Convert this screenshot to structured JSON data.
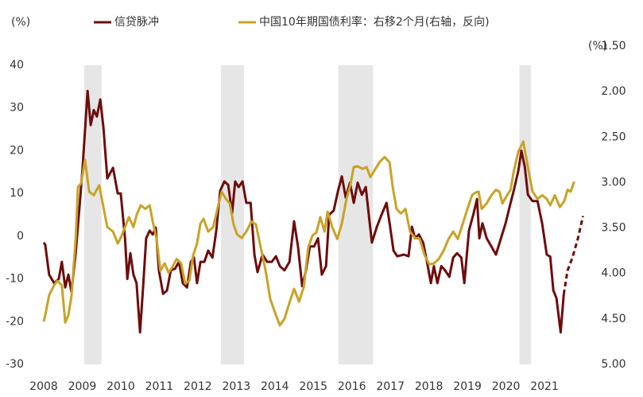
{
  "chart_data": {
    "type": "line",
    "y_label": "(%)",
    "y2_label": "(%)",
    "xlim": [
      2008,
      2022
    ],
    "xticks": [
      2008,
      2009,
      2010,
      2011,
      2012,
      2013,
      2014,
      2015,
      2016,
      2017,
      2018,
      2019,
      2020,
      2021
    ],
    "ylim": [
      -30,
      40
    ],
    "yticks": [
      40,
      30,
      20,
      10,
      0,
      -10,
      -20,
      -30
    ],
    "y2lim": [
      5.0,
      1.5
    ],
    "y2_reversed": true,
    "y2ticks": [
      {
        "value": 1.5,
        "label": "1.50"
      },
      {
        "value": 2.0,
        "label": "2.00"
      },
      {
        "value": 2.5,
        "label": "2.50"
      },
      {
        "value": 3.0,
        "label": "3.00"
      },
      {
        "value": 3.5,
        "label": "3.50"
      },
      {
        "value": 4.0,
        "label": "4.00"
      },
      {
        "value": 4.5,
        "label": "4.50"
      },
      {
        "value": 5.0,
        "label": "5.00"
      }
    ],
    "grid": false,
    "shaded_x_ranges": [
      [
        2009.05,
        2009.5
      ],
      [
        2012.6,
        2013.2
      ],
      [
        2015.65,
        2016.55
      ],
      [
        2020.35,
        2020.65
      ]
    ],
    "shade_color": "#e6e6e6",
    "series": [
      {
        "name": "信贷脉冲",
        "color": "#6e0c0c",
        "axis": "y",
        "dashed_from_x": 2021.6,
        "x": [
          2008.0,
          2008.04,
          2008.14,
          2008.27,
          2008.39,
          2008.47,
          2008.56,
          2008.64,
          2008.72,
          2008.83,
          2008.93,
          2009.01,
          2009.14,
          2009.22,
          2009.3,
          2009.38,
          2009.47,
          2009.55,
          2009.65,
          2009.8,
          2009.92,
          2010.0,
          2010.11,
          2010.17,
          2010.25,
          2010.33,
          2010.41,
          2010.5,
          2010.58,
          2010.66,
          2010.75,
          2010.83,
          2010.91,
          2010.99,
          2011.1,
          2011.2,
          2011.3,
          2011.41,
          2011.51,
          2011.61,
          2011.72,
          2011.82,
          2011.9,
          2011.98,
          2012.07,
          2012.17,
          2012.27,
          2012.38,
          2012.48,
          2012.58,
          2012.69,
          2012.79,
          2012.89,
          2012.97,
          2013.06,
          2013.16,
          2013.26,
          2013.37,
          2013.47,
          2013.55,
          2013.68,
          2013.8,
          2013.92,
          2014.03,
          2014.13,
          2014.25,
          2014.38,
          2014.5,
          2014.6,
          2014.71,
          2014.81,
          2014.91,
          2015.02,
          2015.12,
          2015.22,
          2015.33,
          2015.41,
          2015.53,
          2015.64,
          2015.74,
          2015.84,
          2015.95,
          2016.05,
          2016.15,
          2016.26,
          2016.36,
          2016.44,
          2016.52,
          2016.65,
          2016.77,
          2016.9,
          2016.98,
          2017.08,
          2017.18,
          2017.35,
          2017.47,
          2017.56,
          2017.64,
          2017.74,
          2017.85,
          2017.95,
          2018.05,
          2018.13,
          2018.22,
          2018.32,
          2018.42,
          2018.53,
          2018.63,
          2018.73,
          2018.84,
          2018.92,
          2019.04,
          2019.15,
          2019.25,
          2019.31,
          2019.39,
          2019.5,
          2019.62,
          2019.74,
          2019.87,
          2019.99,
          2020.12,
          2020.2,
          2020.32,
          2020.4,
          2020.49,
          2020.57,
          2020.69,
          2020.82,
          2020.94,
          2021.06,
          2021.15,
          2021.23,
          2021.31,
          2021.42,
          2021.5,
          2021.6,
          2021.72,
          2021.87,
          2022.0
        ],
        "values": [
          -1.5,
          -2,
          -9,
          -11,
          -10,
          -6,
          -12,
          -9,
          -13,
          -4,
          7,
          16,
          34,
          26,
          29.5,
          28,
          32,
          25.5,
          13.5,
          16,
          10,
          10,
          -0.5,
          -10,
          -4,
          -9,
          -11,
          -22.5,
          -12,
          -0.5,
          1.3,
          0.4,
          2,
          -8,
          -13.5,
          -12.7,
          -8,
          -7.6,
          -6,
          -11,
          -12,
          -6,
          -5,
          -11,
          -6,
          -6,
          -3.4,
          -5,
          1.3,
          10.6,
          12.8,
          12,
          5.4,
          12.8,
          11.5,
          12.8,
          7.8,
          7.8,
          -4.3,
          -8.4,
          -4.3,
          -6,
          -6,
          -4.7,
          -7,
          -8,
          -6,
          3.5,
          -2.4,
          -11.7,
          -8,
          -2.4,
          -2.4,
          -0.5,
          -9,
          -7,
          5,
          6,
          10.6,
          14,
          9,
          12.5,
          7.8,
          12.5,
          9.7,
          11.5,
          5,
          -1.5,
          2.2,
          5,
          7.8,
          3,
          -3.4,
          -4.7,
          -4.3,
          -4.7,
          2.2,
          -0.5,
          0.4,
          -1.5,
          -6,
          -11,
          -7,
          -11,
          -7,
          -8,
          -9.5,
          -5,
          -4,
          -5,
          -11,
          1.3,
          5,
          8.7,
          -0.5,
          3,
          -0.5,
          -2.4,
          -4.3,
          -0.5,
          3,
          7.8,
          10.6,
          15.3,
          20,
          16.2,
          9.7,
          8.2,
          8.2,
          3,
          -4.3,
          -4.8,
          -12.7,
          -14.5,
          -22.5,
          -13.6,
          -8,
          -5.2,
          -0.5,
          4.7
        ]
      },
      {
        "name": "中国10年期国债利率：右移2个月(右轴，反向)",
        "color": "#c9a227",
        "axis": "y2",
        "x": [
          2008.0,
          2008.04,
          2008.14,
          2008.27,
          2008.35,
          2008.47,
          2008.56,
          2008.64,
          2008.72,
          2008.83,
          2008.89,
          2008.97,
          2009.07,
          2009.18,
          2009.3,
          2009.44,
          2009.55,
          2009.65,
          2009.8,
          2009.92,
          2010.0,
          2010.11,
          2010.21,
          2010.33,
          2010.41,
          2010.52,
          2010.64,
          2010.75,
          2010.83,
          2010.93,
          2011.03,
          2011.14,
          2011.24,
          2011.34,
          2011.45,
          2011.57,
          2011.67,
          2011.78,
          2011.88,
          2011.98,
          2012.07,
          2012.15,
          2012.27,
          2012.4,
          2012.52,
          2012.62,
          2012.73,
          2012.83,
          2012.93,
          2013.02,
          2013.14,
          2013.26,
          2013.39,
          2013.51,
          2013.63,
          2013.76,
          2013.88,
          2014.03,
          2014.13,
          2014.25,
          2014.38,
          2014.5,
          2014.63,
          2014.75,
          2014.87,
          2014.98,
          2015.08,
          2015.18,
          2015.29,
          2015.37,
          2015.49,
          2015.62,
          2015.74,
          2015.86,
          2015.95,
          2016.05,
          2016.15,
          2016.28,
          2016.38,
          2016.48,
          2016.61,
          2016.73,
          2016.85,
          2016.98,
          2017.06,
          2017.16,
          2017.27,
          2017.39,
          2017.51,
          2017.64,
          2017.76,
          2017.89,
          2018.01,
          2018.13,
          2018.26,
          2018.38,
          2018.51,
          2018.63,
          2018.75,
          2018.88,
          2019.0,
          2019.12,
          2019.21,
          2019.29,
          2019.37,
          2019.5,
          2019.62,
          2019.74,
          2019.83,
          2019.91,
          2020.03,
          2020.12,
          2020.2,
          2020.32,
          2020.45,
          2020.57,
          2020.69,
          2020.82,
          2020.94,
          2021.06,
          2021.15,
          2021.27,
          2021.4,
          2021.52,
          2021.6,
          2021.68,
          2021.77
        ],
        "values": [
          4.53,
          4.46,
          4.24,
          4.13,
          4.08,
          4.13,
          4.54,
          4.46,
          4.25,
          3.62,
          3.05,
          3.01,
          2.75,
          3.1,
          3.14,
          3.03,
          3.27,
          3.49,
          3.54,
          3.67,
          3.61,
          3.49,
          3.38,
          3.49,
          3.36,
          3.25,
          3.29,
          3.25,
          3.43,
          3.62,
          3.97,
          3.89,
          3.99,
          3.93,
          3.84,
          3.89,
          4.11,
          4.08,
          3.8,
          3.67,
          3.45,
          3.4,
          3.54,
          3.49,
          3.27,
          3.1,
          3.18,
          3.23,
          3.46,
          3.57,
          3.61,
          3.54,
          3.43,
          3.46,
          3.71,
          3.97,
          4.28,
          4.46,
          4.57,
          4.5,
          4.32,
          4.17,
          4.31,
          4.15,
          3.71,
          3.58,
          3.55,
          3.38,
          3.54,
          3.32,
          3.49,
          3.62,
          3.45,
          3.18,
          3.05,
          2.83,
          2.82,
          2.85,
          2.83,
          2.94,
          2.85,
          2.77,
          2.72,
          2.78,
          3.05,
          3.29,
          3.34,
          3.29,
          3.54,
          3.61,
          3.62,
          3.8,
          3.9,
          3.89,
          3.84,
          3.75,
          3.62,
          3.54,
          3.62,
          3.45,
          3.29,
          3.14,
          3.11,
          3.1,
          3.29,
          3.23,
          3.14,
          3.08,
          3.1,
          3.23,
          3.14,
          3.08,
          2.88,
          2.66,
          2.55,
          2.83,
          3.1,
          3.18,
          3.14,
          3.18,
          3.25,
          3.14,
          3.27,
          3.2,
          3.08,
          3.1,
          2.99
        ]
      }
    ]
  }
}
